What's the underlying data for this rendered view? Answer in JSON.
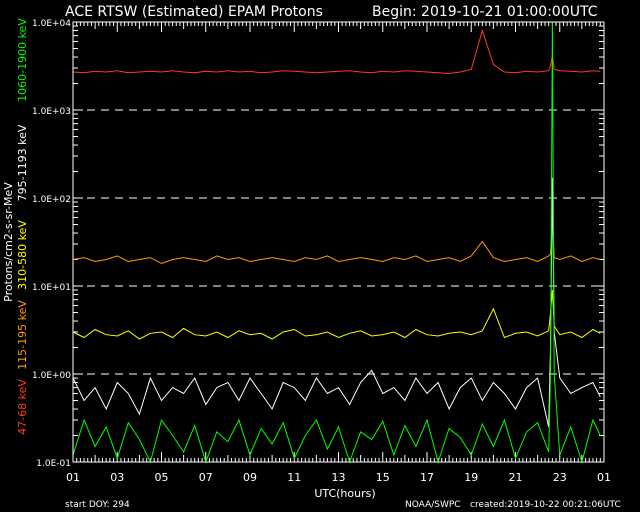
{
  "header": {
    "title": "ACE RTSW (Estimated) EPAM Protons",
    "begin": "Begin: 2019-10-21 01:00:00UTC"
  },
  "footer": {
    "start_doy": "start DOY:  294",
    "source": "NOAA/SWPC",
    "created": "created:2019-10-22 00:21:06UTC"
  },
  "chart_data": {
    "type": "line",
    "title": "ACE RTSW (Estimated) EPAM Protons",
    "xlabel": "UTC(hours)",
    "ylabel": "Protons/cm2-s-sr-MeV",
    "yscale": "log",
    "ylim": [
      0.1,
      10000
    ],
    "ytick_labels": [
      "1.0E-01",
      "1.0E+00",
      "1.0E+01",
      "1.0E+02",
      "1.0E+03",
      "1.0E+04"
    ],
    "xtick_labels": [
      "01",
      "03",
      "05",
      "07",
      "09",
      "11",
      "13",
      "15",
      "17",
      "19",
      "21",
      "23",
      "01"
    ],
    "grid": "dashed horizontal at decades",
    "x": [
      "01:00",
      "01:30",
      "02:00",
      "02:30",
      "03:00",
      "03:30",
      "04:00",
      "04:30",
      "05:00",
      "05:30",
      "06:00",
      "06:30",
      "07:00",
      "07:30",
      "08:00",
      "08:30",
      "09:00",
      "09:30",
      "10:00",
      "10:30",
      "11:00",
      "11:30",
      "12:00",
      "12:30",
      "13:00",
      "13:30",
      "14:00",
      "14:30",
      "15:00",
      "15:30",
      "16:00",
      "16:30",
      "17:00",
      "17:30",
      "18:00",
      "18:30",
      "19:00",
      "19:30",
      "20:00",
      "20:30",
      "21:00",
      "21:30",
      "22:00",
      "22:30",
      "22:35",
      "22:40",
      "22:45",
      "23:00",
      "23:30",
      "00:00",
      "00:30",
      "00:50"
    ],
    "series": [
      {
        "name": "47-68 keV",
        "color": "#ff3a1e",
        "values": [
          2700,
          2650,
          2750,
          2700,
          2800,
          2650,
          2700,
          2750,
          2700,
          2800,
          2700,
          2650,
          2750,
          2700,
          2800,
          2700,
          2750,
          2650,
          2700,
          2800,
          2750,
          2700,
          2650,
          2700,
          2750,
          2800,
          2700,
          2650,
          2750,
          2700,
          2800,
          2750,
          2700,
          2650,
          2600,
          2700,
          2900,
          8000,
          3300,
          2700,
          2650,
          2750,
          2700,
          2800,
          3200,
          4200,
          2900,
          2800,
          2750,
          2700,
          2800,
          2750
        ]
      },
      {
        "name": "115-195 keV",
        "color": "#ff9a00",
        "values": [
          20,
          21,
          19,
          20,
          22,
          19,
          20,
          21,
          18,
          20,
          21,
          20,
          19,
          22,
          20,
          21,
          19,
          20,
          21,
          20,
          19,
          21,
          20,
          22,
          19,
          20,
          21,
          20,
          19,
          21,
          20,
          22,
          19,
          20,
          21,
          19,
          22,
          32,
          21,
          19,
          20,
          21,
          19,
          22,
          23,
          60,
          21,
          20,
          22,
          19,
          21,
          20
        ]
      },
      {
        "name": "310-580 keV",
        "color": "#ffff00",
        "values": [
          3.0,
          2.6,
          3.2,
          2.8,
          2.7,
          3.1,
          2.5,
          2.9,
          3.0,
          2.6,
          3.3,
          2.8,
          2.7,
          3.0,
          2.6,
          3.1,
          2.8,
          2.9,
          2.5,
          3.0,
          3.2,
          2.7,
          2.8,
          3.0,
          2.6,
          2.9,
          3.1,
          2.7,
          2.8,
          3.0,
          2.6,
          3.2,
          2.8,
          2.7,
          2.9,
          3.0,
          2.8,
          3.1,
          5.5,
          2.6,
          2.9,
          3.0,
          2.7,
          3.1,
          5.0,
          9.0,
          3.5,
          2.8,
          3.0,
          2.6,
          3.2,
          2.9
        ]
      },
      {
        "name": "795-1193 keV",
        "color": "#ffffff",
        "values": [
          0.9,
          0.5,
          0.7,
          0.4,
          0.8,
          0.6,
          0.35,
          0.9,
          0.5,
          0.7,
          0.6,
          0.9,
          0.45,
          0.7,
          0.8,
          0.5,
          0.9,
          0.6,
          0.4,
          0.8,
          0.7,
          0.5,
          0.9,
          0.6,
          0.7,
          0.45,
          0.8,
          1.1,
          0.6,
          0.7,
          0.5,
          0.9,
          0.6,
          0.8,
          0.4,
          0.7,
          0.9,
          0.5,
          0.8,
          0.6,
          0.4,
          0.7,
          0.9,
          0.25,
          2.0,
          170,
          3.0,
          0.9,
          0.6,
          0.7,
          0.8,
          0.55
        ]
      },
      {
        "name": "1060-1900 keV",
        "color": "#00ff00",
        "values": [
          0.12,
          0.3,
          0.15,
          0.25,
          0.11,
          0.28,
          0.18,
          0.1,
          0.3,
          0.2,
          0.13,
          0.26,
          0.1,
          0.22,
          0.17,
          0.3,
          0.12,
          0.24,
          0.16,
          0.28,
          0.11,
          0.2,
          0.3,
          0.14,
          0.25,
          0.1,
          0.22,
          0.18,
          0.29,
          0.12,
          0.26,
          0.15,
          0.3,
          0.1,
          0.24,
          0.19,
          0.12,
          0.27,
          0.15,
          0.3,
          0.11,
          0.22,
          0.28,
          0.13,
          1.0,
          20000,
          1.0,
          0.12,
          0.25,
          0.1,
          0.3,
          0.2
        ]
      }
    ]
  }
}
